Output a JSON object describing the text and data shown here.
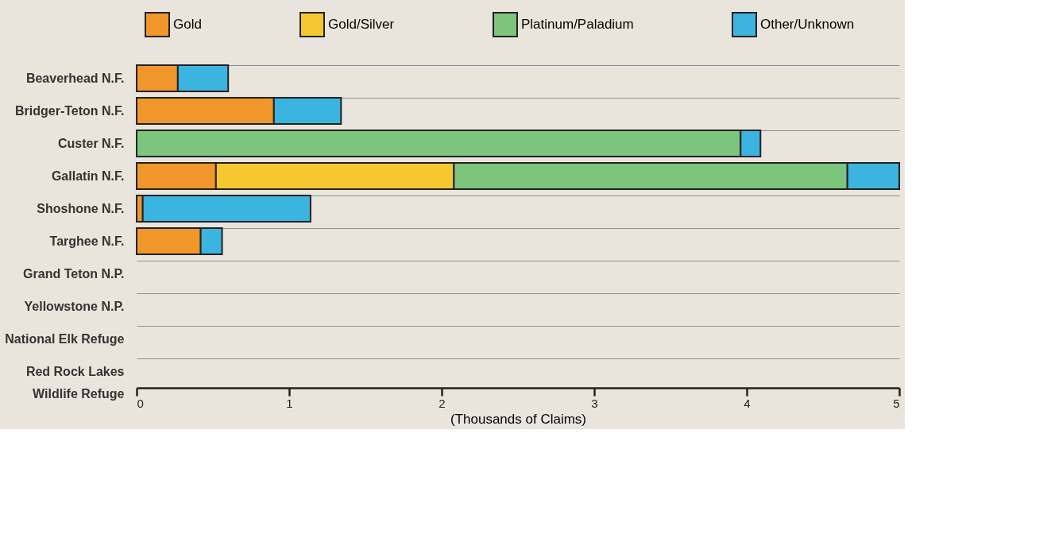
{
  "chart_data": {
    "type": "bar",
    "orientation": "horizontal",
    "stacked": true,
    "xlabel": "(Thousands of Claims)",
    "categories": [
      "Beaverhead N.F.",
      "Bridger-Teton N.F.",
      "Custer N.F.",
      "Gallatin N.F.",
      "Shoshone N.F.",
      "Targhee N.F.",
      "Grand Teton N.P.",
      "Yellowstone N.P.",
      "National Elk Refuge",
      "Red Rock Lakes Wildlife Refuge"
    ],
    "series": [
      {
        "name": "Gold",
        "color": "#f0962a",
        "values": [
          0.27,
          0.9,
          null,
          0.52,
          0.04,
          0.42,
          null,
          null,
          null,
          null
        ]
      },
      {
        "name": "Gold/Silver",
        "color": "#f5c832",
        "values": [
          null,
          null,
          null,
          1.56,
          null,
          null,
          null,
          null,
          null,
          null
        ]
      },
      {
        "name": "Platinum/Paladium",
        "color": "#7dc47d",
        "values": [
          null,
          null,
          3.96,
          2.58,
          null,
          null,
          null,
          null,
          null,
          null
        ]
      },
      {
        "name": "Other/Unknown",
        "color": "#3cb4e0",
        "values": [
          0.33,
          0.44,
          0.13,
          0.34,
          1.1,
          0.14,
          null,
          null,
          null,
          null
        ]
      }
    ],
    "xlim": [
      0,
      5
    ],
    "xticks": [
      0,
      1,
      2,
      3,
      4,
      5
    ],
    "grid": "y",
    "legend": "top"
  }
}
